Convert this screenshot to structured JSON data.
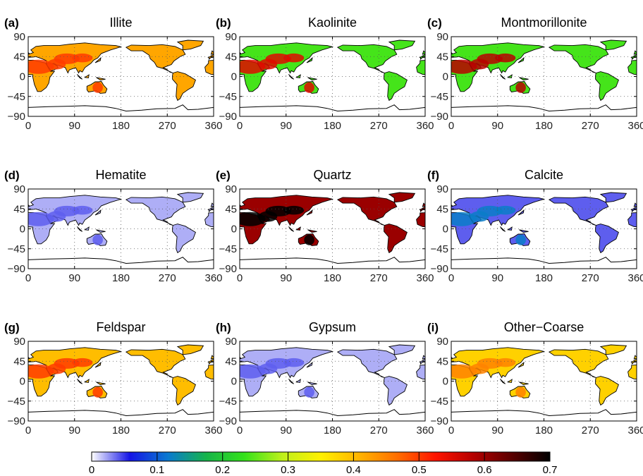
{
  "chart_data": {
    "type": "heatmap",
    "panel_axes": {
      "x_ticks": [
        0,
        90,
        180,
        270,
        360
      ],
      "y_ticks": [
        90,
        45,
        0,
        -45,
        -90
      ],
      "xlim": [
        0,
        360
      ],
      "ylim": [
        -90,
        90
      ],
      "grid": "dotted"
    },
    "panels": [
      {
        "label": "(a)",
        "title": "Illite",
        "base_value": 0.42,
        "hot_value": 0.5
      },
      {
        "label": "(b)",
        "title": "Kaolinite",
        "base_value": 0.24,
        "hot_value": 0.55
      },
      {
        "label": "(c)",
        "title": "Montmorillonite",
        "base_value": 0.24,
        "hot_value": 0.58
      },
      {
        "label": "(d)",
        "title": "Hematite",
        "base_value": 0.02,
        "hot_value": 0.04
      },
      {
        "label": "(e)",
        "title": "Quartz",
        "base_value": 0.6,
        "hot_value": 0.7
      },
      {
        "label": "(f)",
        "title": "Calcite",
        "base_value": 0.04,
        "hot_value": 0.12
      },
      {
        "label": "(g)",
        "title": "Feldspar",
        "base_value": 0.4,
        "hot_value": 0.5
      },
      {
        "label": "(h)",
        "title": "Gypsum",
        "base_value": 0.02,
        "hot_value": 0.04
      },
      {
        "label": "(i)",
        "title": "Other−Coarse",
        "base_value": 0.38,
        "hot_value": 0.45
      }
    ],
    "colorbar": {
      "min": 0,
      "max": 0.7,
      "ticks": [
        "0",
        "0.1",
        "0.2",
        "0.3",
        "0.4",
        "0.5",
        "0.6",
        "0.7"
      ],
      "colors": [
        "#ffffff",
        "#1414e6",
        "#0a7ad0",
        "#16b44a",
        "#35e21a",
        "#bff01a",
        "#fff000",
        "#ffb400",
        "#ff6e00",
        "#ff1400",
        "#b40000",
        "#5a0000",
        "#000000"
      ]
    }
  }
}
